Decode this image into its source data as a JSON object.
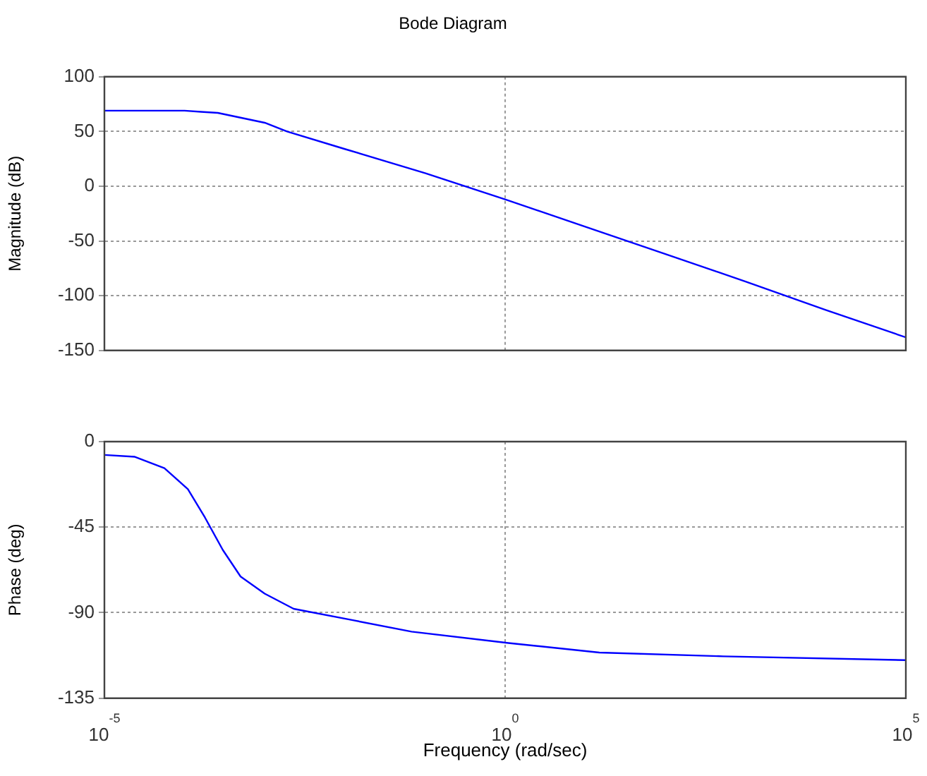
{
  "chart_data": [
    {
      "type": "line",
      "title": "Bode Diagram",
      "ylabel": "Magnitude (dB)",
      "log": "x",
      "grid": true,
      "marker": "none",
      "legend": false,
      "tick_labels": "y",
      "xlim": [
        1e-05,
        100000
      ],
      "xticks": [
        {
          "value": 1e-05,
          "label": null
        },
        {
          "value": 1,
          "label": null
        },
        {
          "value": 100000,
          "label": null
        }
      ],
      "ylim": [
        -150,
        100
      ],
      "yticks": [
        -150,
        -100,
        -50,
        0,
        50,
        100
      ],
      "series": [
        {
          "color": "#0000ff",
          "x": [
            1e-05,
            0.0001,
            0.00016,
            0.00026,
            0.001,
            0.0019,
            0.01,
            0.1,
            1,
            10,
            100,
            1000,
            10000,
            100000
          ],
          "values": [
            69,
            69,
            68,
            67,
            58,
            50,
            34,
            12,
            -12,
            -37,
            -62,
            -87,
            -113,
            -138
          ]
        }
      ]
    },
    {
      "type": "line",
      "xlabel": "Frequency (rad/sec)",
      "ylabel": "Phase (deg)",
      "log": "x",
      "grid": true,
      "marker": "none",
      "legend": false,
      "xlim": [
        1e-05,
        100000
      ],
      "xticks": [
        {
          "value": 1e-05,
          "label": "10$^{-5}$"
        },
        {
          "value": 1,
          "label": "10$^{0}$"
        },
        {
          "value": 100000,
          "label": "10$^{5}$"
        }
      ],
      "ylim": [
        -135,
        0
      ],
      "yticks": [
        -135,
        -90,
        -45,
        0
      ],
      "series": [
        {
          "color": "#0000ff",
          "x": [
            1e-05,
            2.4e-05,
            5.6e-05,
            0.00011,
            0.00018,
            0.0003,
            0.0005,
            0.001,
            0.0023,
            0.0126,
            0.068,
            1.1,
            15,
            525,
            98000
          ],
          "values": [
            -7,
            -8,
            -14,
            -25,
            -40,
            -57,
            -71,
            -80,
            -88,
            -94,
            -100,
            -106,
            -111,
            -113,
            -115
          ]
        }
      ]
    }
  ]
}
